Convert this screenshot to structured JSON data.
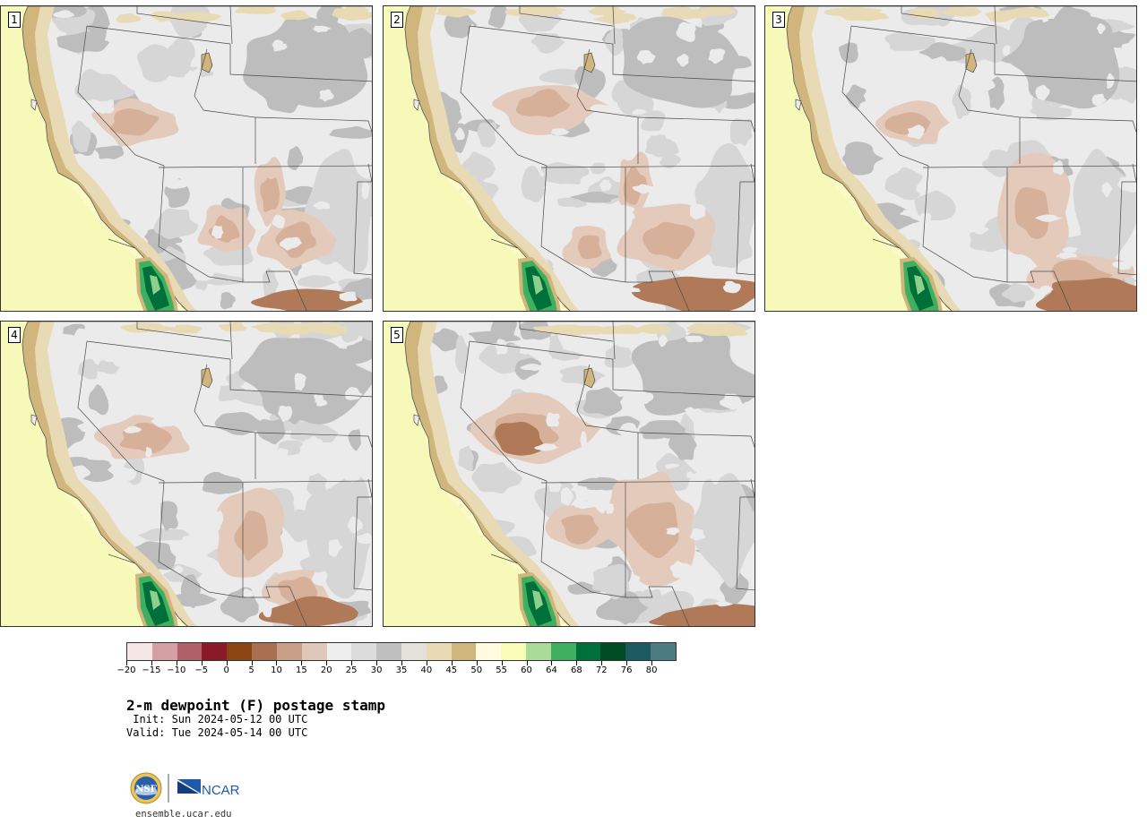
{
  "figure": {
    "title": "2-m dewpoint (F) postage stamp",
    "init_line": " Init: Sun 2024-05-12 00 UTC",
    "valid_line": "Valid: Tue 2024-05-14 00 UTC",
    "website": "ensemble.ucar.edu",
    "logos": {
      "nsf_text": "NSF",
      "ncar_text": "NCAR"
    }
  },
  "panels": [
    {
      "label": "1",
      "variant": 0
    },
    {
      "label": "2",
      "variant": 1
    },
    {
      "label": "3",
      "variant": 2
    },
    {
      "label": "4",
      "variant": 3
    },
    {
      "label": "5",
      "variant": 4
    }
  ],
  "colorbar": {
    "tick_labels": [
      "−20",
      "−15",
      "−10",
      "−5",
      "0",
      "5",
      "10",
      "15",
      "20",
      "25",
      "30",
      "35",
      "40",
      "45",
      "50",
      "55",
      "60",
      "64",
      "68",
      "72",
      "76",
      "80"
    ],
    "colors": [
      "#f5e6e6",
      "#d4a0a4",
      "#b06068",
      "#8b1a28",
      "#8b4513",
      "#a87050",
      "#c8a088",
      "#e0c8b8",
      "#eeeeee",
      "#dcdcdc",
      "#bfbfbf",
      "#e4e2d8",
      "#e8dab4",
      "#d0b67c",
      "#fffbe0",
      "#f8fcb8",
      "#a8dc98",
      "#40b060",
      "#00703a",
      "#004a24",
      "#1c5a60",
      "#4c7c80"
    ]
  },
  "map_colors": {
    "ocean": "#fbfbc8",
    "ocean_near": "#f4f8b0",
    "coast_dark": "#b8965c",
    "coast_mid": "#d0b67c",
    "coast_light": "#e8dab4",
    "gray_dark": "#bdbdbd",
    "gray_mid": "#d6d6d6",
    "gray_light": "#ebebeb",
    "tan_light": "#e4cabb",
    "tan_mid": "#d6b098",
    "brown": "#b07a58",
    "green_light": "#8cd08c",
    "green_mid": "#40b060",
    "green_dark": "#00703a",
    "border": "#4a4a4a"
  }
}
